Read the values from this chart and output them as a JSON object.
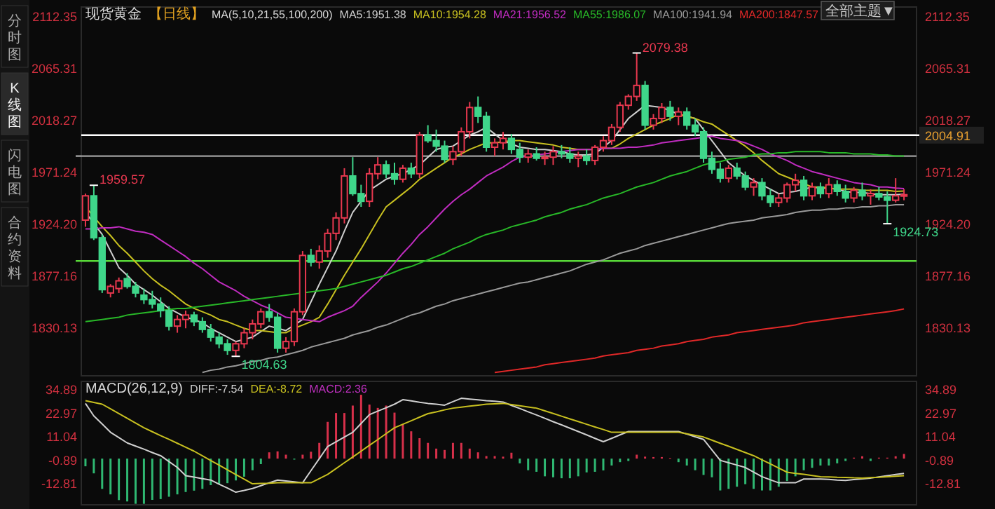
{
  "chart_data": [
    {
      "type": "candlestick",
      "title": "现货黄金",
      "subtitle": "【日线】",
      "legend_title": "MA(5,10,21,55,100,200)",
      "legend": "top",
      "tick_labels": "y",
      "categories": [
        null,
        null,
        null,
        null,
        null,
        null,
        null,
        null,
        null,
        null,
        null,
        null,
        null,
        null,
        null,
        null,
        null,
        null,
        null,
        null,
        null,
        null,
        null,
        null,
        null,
        null,
        null,
        null,
        null,
        null,
        null,
        null,
        null,
        null,
        null,
        null,
        null,
        null,
        null,
        null,
        null,
        null,
        null,
        null,
        null,
        null,
        null,
        null,
        null,
        null,
        null,
        null,
        null,
        null,
        null,
        null,
        null,
        null,
        null,
        null,
        null,
        null,
        null,
        null,
        null,
        null,
        null,
        null,
        null,
        null,
        null,
        null,
        null,
        null,
        null,
        null,
        null,
        null,
        null,
        null,
        null,
        null,
        null,
        null,
        null,
        null,
        null,
        null,
        null,
        null,
        null,
        null,
        null,
        null,
        null,
        null,
        null,
        null,
        null
      ],
      "ohlc": [
        [
          1928,
          1952,
          1922,
          1950
        ],
        [
          1950,
          1959.57,
          1910,
          1912
        ],
        [
          1912,
          1915,
          1862,
          1865
        ],
        [
          1862,
          1870,
          1858,
          1868
        ],
        [
          1866,
          1876,
          1862,
          1873
        ],
        [
          1875,
          1880,
          1866,
          1868
        ],
        [
          1868,
          1872,
          1858,
          1862
        ],
        [
          1860,
          1866,
          1852,
          1856
        ],
        [
          1856,
          1864,
          1848,
          1852
        ],
        [
          1852,
          1858,
          1840,
          1846
        ],
        [
          1846,
          1850,
          1828,
          1832
        ],
        [
          1832,
          1842,
          1826,
          1838
        ],
        [
          1838,
          1846,
          1830,
          1842
        ],
        [
          1842,
          1845,
          1832,
          1836
        ],
        [
          1836,
          1840,
          1826,
          1829
        ],
        [
          1829,
          1834,
          1818,
          1822
        ],
        [
          1822,
          1826,
          1812,
          1816
        ],
        [
          1816,
          1820,
          1806,
          1810
        ],
        [
          1810,
          1818,
          1804.63,
          1816
        ],
        [
          1816,
          1830,
          1812,
          1826
        ],
        [
          1826,
          1838,
          1820,
          1834
        ],
        [
          1834,
          1848,
          1830,
          1845
        ],
        [
          1845,
          1852,
          1836,
          1840
        ],
        [
          1840,
          1844,
          1808,
          1812
        ],
        [
          1812,
          1822,
          1808,
          1818
        ],
        [
          1818,
          1848,
          1814,
          1845
        ],
        [
          1845,
          1900,
          1842,
          1896
        ],
        [
          1896,
          1902,
          1886,
          1890
        ],
        [
          1890,
          1905,
          1884,
          1900
        ],
        [
          1900,
          1920,
          1894,
          1916
        ],
        [
          1916,
          1935,
          1910,
          1930
        ],
        [
          1930,
          1975,
          1925,
          1968
        ],
        [
          1968,
          1985,
          1950,
          1952
        ],
        [
          1952,
          1960,
          1940,
          1945
        ],
        [
          1945,
          1975,
          1940,
          1970
        ],
        [
          1970,
          1985,
          1965,
          1978
        ],
        [
          1978,
          1982,
          1966,
          1970
        ],
        [
          1970,
          1980,
          1960,
          1965
        ],
        [
          1965,
          1978,
          1962,
          1975
        ],
        [
          1975,
          1980,
          1966,
          1970
        ],
        [
          1970,
          2008,
          1966,
          2005
        ],
        [
          2005,
          2014,
          1998,
          2000
        ],
        [
          2000,
          2010,
          1990,
          1995
        ],
        [
          1995,
          2000,
          1980,
          1983
        ],
        [
          1983,
          1995,
          1978,
          1990
        ],
        [
          1990,
          2012,
          1986,
          2008
        ],
        [
          2008,
          2035,
          2002,
          2030
        ],
        [
          2030,
          2040,
          2016,
          2022
        ],
        [
          2022,
          2026,
          1990,
          1994
        ],
        [
          1994,
          2002,
          1986,
          1998
        ],
        [
          1998,
          2008,
          1992,
          2002
        ],
        [
          2002,
          2006,
          1988,
          1992
        ],
        [
          1992,
          1998,
          1980,
          1985
        ],
        [
          1985,
          1992,
          1980,
          1988
        ],
        [
          1988,
          1994,
          1982,
          1984
        ],
        [
          1984,
          1990,
          1978,
          1985
        ],
        [
          1985,
          1995,
          1978,
          1990
        ],
        [
          1990,
          1996,
          1984,
          1988
        ],
        [
          1988,
          1994,
          1980,
          1984
        ],
        [
          1984,
          1990,
          1976,
          1986
        ],
        [
          1986,
          1992,
          1978,
          1982
        ],
        [
          1982,
          1996,
          1978,
          1994
        ],
        [
          1994,
          2004,
          1990,
          2000
        ],
        [
          2000,
          2015,
          1996,
          2012
        ],
        [
          2012,
          2035,
          2008,
          2032
        ],
        [
          2032,
          2042,
          2028,
          2040
        ],
        [
          2040,
          2079.38,
          2036,
          2050
        ],
        [
          2050,
          2054,
          2010,
          2014
        ],
        [
          2014,
          2024,
          2010,
          2020
        ],
        [
          2020,
          2034,
          2016,
          2030
        ],
        [
          2030,
          2036,
          2018,
          2022
        ],
        [
          2022,
          2030,
          2014,
          2026
        ],
        [
          2026,
          2030,
          2010,
          2014
        ],
        [
          2014,
          2020,
          2004,
          2008
        ],
        [
          2008,
          2012,
          1980,
          1984
        ],
        [
          1984,
          1990,
          1970,
          1974
        ],
        [
          1974,
          1980,
          1962,
          1966
        ],
        [
          1966,
          1978,
          1962,
          1975
        ],
        [
          1975,
          1980,
          1965,
          1968
        ],
        [
          1968,
          1972,
          1955,
          1958
        ],
        [
          1958,
          1966,
          1950,
          1962
        ],
        [
          1962,
          1966,
          1946,
          1950
        ],
        [
          1950,
          1956,
          1940,
          1944
        ],
        [
          1944,
          1952,
          1940,
          1948
        ],
        [
          1948,
          1962,
          1944,
          1960
        ],
        [
          1960,
          1970,
          1954,
          1964
        ],
        [
          1964,
          1968,
          1946,
          1950
        ],
        [
          1950,
          1962,
          1946,
          1958
        ],
        [
          1958,
          1962,
          1948,
          1952
        ],
        [
          1952,
          1966,
          1948,
          1960
        ],
        [
          1960,
          1964,
          1950,
          1954
        ],
        [
          1954,
          1960,
          1944,
          1948
        ],
        [
          1948,
          1958,
          1944,
          1955
        ],
        [
          1955,
          1962,
          1946,
          1950
        ],
        [
          1950,
          1956,
          1942,
          1952
        ],
        [
          1952,
          1958,
          1946,
          1949
        ],
        [
          1949,
          1954,
          1924.73,
          1946
        ],
        [
          1946,
          1966,
          1944,
          1950
        ],
        [
          1950,
          1956,
          1946,
          1951
        ]
      ],
      "ylim": [
        1787,
        2121
      ],
      "yticks": [
        1830.13,
        1877.16,
        {
          "value": 1924.2,
          "label": "1924.20"
        },
        1971.24,
        2018.27,
        2065.31,
        2112.35
      ],
      "y2lim": [
        1787,
        2121
      ],
      "y2ticks": [
        1830.13,
        1877.16,
        {
          "value": 1924.2,
          "label": "1924.20"
        },
        1971.24,
        2018.27,
        2065.31,
        2112.35
      ],
      "series": [
        {
          "type": "line",
          "name": "MA5:1951.38",
          "color": "#cfcfcf",
          "values": [
            1935,
            1925,
            1915,
            1900,
            1885,
            1878,
            1870,
            1865,
            1860,
            1854,
            1848,
            1844,
            1840,
            1838,
            1835,
            1830,
            1826,
            1822,
            1818,
            1820,
            1822,
            1827,
            1832,
            1830,
            1828,
            1833,
            1838,
            1854,
            1870,
            1885,
            1900,
            1918,
            1935,
            1945,
            1955,
            1960,
            1965,
            1968,
            1970,
            1974,
            1978,
            1985,
            1992,
            1994,
            1995,
            2000,
            2005,
            2008,
            2012,
            2006,
            2000,
            1997,
            1994,
            1993,
            1992,
            1992,
            1991,
            1990,
            1988,
            1987,
            1987,
            1988,
            1994,
            2000,
            2010,
            2020,
            2026,
            2032,
            2031,
            2030,
            2027,
            2024,
            2022,
            2020,
            2010,
            2000,
            1990,
            1980,
            1974,
            1968,
            1964,
            1960,
            1956,
            1952,
            1953,
            1954,
            1956,
            1958,
            1957,
            1957,
            1956,
            1954,
            1953,
            1953,
            1952,
            1951,
            1951,
            1951,
            1951.38
          ]
        },
        {
          "type": "line",
          "name": "MA10:1954.28",
          "color": "#c8c020",
          "values": [
            1940,
            1931,
            1922,
            1914,
            1905,
            1898,
            1890,
            1882,
            1875,
            1869,
            1864,
            1858,
            1852,
            1848,
            1845,
            1842,
            1838,
            1836,
            1833,
            1830,
            1828,
            1828,
            1827,
            1826,
            1826,
            1830,
            1833,
            1836,
            1840,
            1852,
            1865,
            1878,
            1890,
            1902,
            1915,
            1928,
            1940,
            1946,
            1952,
            1958,
            1965,
            1970,
            1975,
            1980,
            1985,
            1988,
            1992,
            1995,
            1998,
            1998,
            1999,
            2000,
            2000,
            1999,
            1998,
            1997,
            1996,
            1994,
            1993,
            1992,
            1992,
            1992,
            1993,
            1993,
            1997,
            2002,
            2006,
            2010,
            2014,
            2017,
            2020,
            2024,
            2022,
            2020,
            2017,
            2015,
            2010,
            2005,
            2000,
            1995,
            1989,
            1982,
            1976,
            1970,
            1967,
            1964,
            1961,
            1958,
            1958,
            1957,
            1956,
            1956,
            1956,
            1955,
            1955,
            1955,
            1955,
            1954,
            1954.28
          ]
        },
        {
          "type": "line",
          "name": "MA21:1956.52",
          "color": "#c02cc0",
          "values": [
            1920,
            1920,
            1921,
            1921,
            1922,
            1920,
            1918,
            1917,
            1915,
            1910,
            1905,
            1900,
            1895,
            1889,
            1884,
            1878,
            1872,
            1868,
            1864,
            1859,
            1855,
            1851,
            1848,
            1844,
            1840,
            1839,
            1838,
            1837,
            1836,
            1840,
            1843,
            1846,
            1850,
            1858,
            1865,
            1872,
            1880,
            1889,
            1898,
            1906,
            1915,
            1922,
            1930,
            1938,
            1945,
            1951,
            1956,
            1962,
            1968,
            1972,
            1976,
            1981,
            1985,
            1986,
            1987,
            1988,
            1989,
            1990,
            1991,
            1992,
            1992,
            1992,
            1993,
            1993,
            1993,
            1994,
            1994,
            1995,
            1996,
            1998,
            1999,
            2000,
            2001,
            2002,
            2003,
            2004,
            2002,
            2001,
            2000,
            1998,
            1995,
            1992,
            1988,
            1985,
            1982,
            1978,
            1975,
            1972,
            1970,
            1968,
            1966,
            1964,
            1962,
            1961,
            1960,
            1958,
            1958,
            1957,
            1956.52
          ]
        },
        {
          "type": "line",
          "name": "MA55:1986.07",
          "color": "#28b828",
          "values": [
            1836,
            1837,
            1838,
            1839,
            1840,
            1842,
            1843,
            1844,
            1845,
            1846,
            1847,
            1848,
            1848,
            1849,
            1850,
            1851,
            1852,
            1853,
            1854,
            1855,
            1856,
            1857,
            1858,
            1859,
            1860,
            1861,
            1862,
            1863,
            1864,
            1865,
            1866,
            1868,
            1870,
            1872,
            1874,
            1876,
            1878,
            1881,
            1884,
            1886,
            1889,
            1892,
            1895,
            1898,
            1902,
            1905,
            1908,
            1912,
            1915,
            1917,
            1919,
            1922,
            1924,
            1926,
            1928,
            1931,
            1933,
            1935,
            1938,
            1940,
            1942,
            1945,
            1948,
            1950,
            1952,
            1955,
            1958,
            1960,
            1962,
            1965,
            1968,
            1970,
            1972,
            1975,
            1978,
            1980,
            1981,
            1983,
            1984,
            1985,
            1987,
            1988,
            1988,
            1989,
            1989,
            1990,
            1990,
            1990,
            1990,
            1989,
            1989,
            1989,
            1988,
            1988,
            1988,
            1987,
            1987,
            1986,
            1986.07
          ]
        },
        {
          "type": "line",
          "name": "MA100:1941.94",
          "color": "#9a9a9a",
          "values": [
            null,
            null,
            null,
            null,
            null,
            null,
            null,
            null,
            null,
            null,
            null,
            null,
            null,
            null,
            1790,
            1792,
            1793,
            1795,
            1796,
            1798,
            1800,
            1801,
            1803,
            1804,
            1806,
            1808,
            1810,
            1813,
            1815,
            1817,
            1819,
            1821,
            1824,
            1826,
            1828,
            1831,
            1833,
            1836,
            1839,
            1842,
            1844,
            1847,
            1850,
            1852,
            1855,
            1857,
            1859,
            1861,
            1863,
            1865,
            1867,
            1869,
            1871,
            1872,
            1874,
            1876,
            1878,
            1880,
            1882,
            1885,
            1888,
            1890,
            1892,
            1895,
            1898,
            1900,
            1902,
            1905,
            1907,
            1909,
            1911,
            1913,
            1915,
            1917,
            1919,
            1921,
            1923,
            1925,
            1926,
            1927,
            1928,
            1930,
            1931,
            1932,
            1933,
            1935,
            1936,
            1937,
            1937,
            1938,
            1938,
            1939,
            1939,
            1940,
            1940,
            1941,
            1941,
            1942,
            1941.94
          ]
        },
        {
          "type": "line",
          "name": "MA200:1847.57",
          "color": "#e02828",
          "values": [
            null,
            null,
            null,
            null,
            null,
            null,
            null,
            null,
            null,
            null,
            null,
            null,
            null,
            null,
            null,
            null,
            null,
            null,
            null,
            null,
            null,
            null,
            null,
            null,
            null,
            null,
            null,
            null,
            null,
            null,
            null,
            null,
            null,
            null,
            null,
            null,
            null,
            null,
            null,
            null,
            null,
            null,
            null,
            null,
            null,
            null,
            null,
            null,
            null,
            1790,
            1791,
            1792,
            1793,
            1794,
            1795,
            1797,
            1798,
            1799,
            1800,
            1801,
            1802,
            1803,
            1805,
            1806,
            1807,
            1808,
            1810,
            1811,
            1812,
            1814,
            1815,
            1816,
            1818,
            1819,
            1820,
            1822,
            1823,
            1824,
            1826,
            1827,
            1828,
            1829,
            1830,
            1831,
            1832,
            1833,
            1835,
            1836,
            1837,
            1838,
            1839,
            1840,
            1841,
            1842,
            1843,
            1844,
            1845,
            1846,
            1847.57
          ]
        }
      ],
      "ref_lines": [
        {
          "axis": "y2",
          "value": 2004.91,
          "label": "2004.91",
          "color": "#ffffff"
        },
        {
          "axis": "y",
          "value": 1891,
          "color": "#58d838"
        },
        {
          "axis": "y",
          "value": 1986,
          "color": "#a0a0a0"
        }
      ],
      "annotations": [
        "分时图",
        "K线图",
        "闪电图",
        "合约资料",
        "全部主题▼",
        "1959.57",
        "1804.63",
        "2079.38",
        "1924.73"
      ]
    },
    {
      "type": "bar",
      "title": "MACD(26,12,9)",
      "legend": "top",
      "tick_labels": "y",
      "categories": [
        null,
        null,
        null,
        null,
        null,
        null,
        null,
        null,
        null,
        null,
        null,
        null,
        null,
        null,
        null,
        null,
        null,
        null,
        null,
        null,
        null,
        null,
        null,
        null,
        null,
        null,
        null,
        null,
        null,
        null,
        null,
        null,
        null,
        null,
        null,
        null,
        null,
        null,
        null,
        null,
        null,
        null,
        null,
        null,
        null,
        null,
        null,
        null,
        null,
        null,
        null,
        null,
        null,
        null,
        null,
        null,
        null,
        null,
        null,
        null,
        null,
        null,
        null,
        null,
        null,
        null,
        null,
        null,
        null,
        null,
        null,
        null,
        null,
        null,
        null,
        null,
        null,
        null,
        null,
        null,
        null,
        null,
        null,
        null,
        null,
        null,
        null,
        null,
        null,
        null,
        null,
        null,
        null,
        null,
        null,
        null,
        null,
        null,
        null
      ],
      "ylim": [
        -23.5,
        39.3
      ],
      "yticks": [
        -12.81,
        -0.89,
        11.04,
        22.97,
        34.89
      ],
      "y2lim": [
        -23.5,
        39.3
      ],
      "y2ticks": [
        -12.81,
        -0.89,
        11.04,
        22.97,
        34.89
      ],
      "series": [
        {
          "type": "line",
          "name": "DIFF:-7.54",
          "color": "#d0d0d0",
          "values": [
            28.1,
            21.7,
            17.6,
            13.4,
            10.7,
            8,
            6.4,
            4.8,
            3.1,
            1.5,
            -1.5,
            -4.5,
            -8.7,
            -9.4,
            -10.2,
            -10.9,
            -13,
            -15,
            -17.1,
            -16.2,
            -15.2,
            -13.8,
            -12.3,
            -10.9,
            -11.4,
            -11.8,
            -12.3,
            -6.1,
            0,
            6.2,
            8.6,
            11,
            13.4,
            17.9,
            22.4,
            24.2,
            25.9,
            27.7,
            30,
            29.4,
            28.7,
            28.1,
            27.7,
            27.2,
            29,
            30.7,
            30.3,
            29.9,
            29.5,
            29.2,
            28.8,
            27.1,
            25.5,
            23.8,
            22.2,
            20.5,
            18.8,
            17.2,
            15.5,
            13.8,
            12.1,
            10.3,
            8.6,
            10.3,
            12.1,
            13.8,
            13.8,
            13.8,
            13.8,
            13.8,
            13.8,
            13.8,
            12.5,
            11.1,
            9.8,
            4.5,
            -0.9,
            -2.1,
            -3.3,
            -4.5,
            -6.9,
            -9.2,
            -10.8,
            -12.3,
            -12.3,
            -12.3,
            -10.4,
            -10.4,
            -10.4,
            -10.6,
            -10.9,
            -11.1,
            -10.7,
            -10.3,
            -9.9,
            -9.3,
            -8.7,
            -8.1,
            -7.54
          ]
        },
        {
          "type": "line",
          "name": "DEA:-8.72",
          "color": "#c8c020",
          "values": [
            29.5,
            28.6,
            27.7,
            25.3,
            22.9,
            20.5,
            18.1,
            15.7,
            13.7,
            11.7,
            9.8,
            7.8,
            5.8,
            3.8,
            1.4,
            -1,
            -3.3,
            -5.7,
            -8.1,
            -10.4,
            -12.8,
            -12.6,
            -12.5,
            -12.3,
            -12.3,
            -12.3,
            -12.3,
            -12.3,
            -10.2,
            -8,
            -5.1,
            -2.1,
            0.8,
            3.8,
            6.8,
            9.7,
            12.7,
            15.7,
            17.5,
            19.3,
            21.1,
            22.9,
            23.8,
            24.8,
            25.7,
            26.2,
            26.7,
            27.2,
            27.7,
            27.9,
            28.1,
            27.5,
            26.9,
            26.3,
            25.7,
            24.3,
            23,
            21.6,
            20.2,
            18.9,
            17.5,
            16.1,
            14.8,
            13.4,
            13.4,
            13.4,
            13.4,
            13.4,
            13.4,
            13.4,
            13.4,
            13.4,
            12.6,
            11.8,
            11,
            9.4,
            7.8,
            6.3,
            4.7,
            3.1,
            1.5,
            -0.6,
            -2.7,
            -4.8,
            -6.9,
            -7.5,
            -8,
            -8.6,
            -9.2,
            -9.3,
            -9.5,
            -9.6,
            -9.8,
            -9.9,
            -9.7,
            -9.5,
            -9.2,
            -9,
            -8.72
          ]
        },
        {
          "type": "bar",
          "name": "MACD:2.36",
          "color": "#c030c0",
          "values": [
            -3.9,
            -7.5,
            -15.4,
            -18.2,
            -21.1,
            -21.8,
            -23,
            -23,
            -21,
            -20.6,
            -19.4,
            -18.2,
            -17,
            -16.3,
            -15.4,
            -13.5,
            -13,
            -12.5,
            -11.1,
            -9.2,
            -5.9,
            -2.8,
            3.2,
            3.7,
            2,
            -0.5,
            2,
            3.5,
            8,
            18.7,
            23.2,
            23.2,
            27,
            32.5,
            27.5,
            25.8,
            27,
            23.4,
            17.5,
            13.9,
            10.4,
            8,
            5.1,
            4.4,
            8,
            8,
            5.1,
            3.2,
            1.3,
            1.3,
            1,
            3,
            -2.4,
            -5.9,
            -6.7,
            -9,
            -9.5,
            -10,
            -10,
            -9,
            -7,
            -6.7,
            -6,
            -3.5,
            -1.8,
            -1.2,
            2,
            1,
            0.8,
            0.8,
            0.3,
            -1.8,
            -3.5,
            -5.9,
            -8.3,
            -9.5,
            -16.2,
            -15.4,
            -14.3,
            -13,
            -15.4,
            -16.2,
            -16.2,
            -14.3,
            -11.4,
            -9,
            -5.9,
            -4.7,
            -3.5,
            -3.5,
            -2.4,
            -1.2,
            0.5,
            1.2,
            -1.2,
            0.5,
            0.5,
            1.2,
            2.36
          ],
          "colors": [
            "#2fb872",
            "#2fb872",
            "#2fb872",
            "#2fb872",
            "#2fb872",
            "#2fb872",
            "#2fb872",
            "#2fb872",
            "#2fb872",
            "#2fb872",
            "#2fb872",
            "#2fb872",
            "#2fb872",
            "#2fb872",
            "#2fb872",
            "#2fb872",
            "#2fb872",
            "#2fb872",
            "#2fb872",
            "#2fb872",
            "#2fb872",
            "#2fb872",
            "#d8304a",
            "#d8304a",
            "#d8304a",
            "#2fb872",
            "#d8304a",
            "#d8304a",
            "#d8304a",
            "#d8304a",
            "#d8304a",
            "#d8304a",
            "#d8304a",
            "#d8304a",
            "#d8304a",
            "#d8304a",
            "#d8304a",
            "#d8304a",
            "#d8304a",
            "#d8304a",
            "#d8304a",
            "#d8304a",
            "#d8304a",
            "#d8304a",
            "#d8304a",
            "#d8304a",
            "#d8304a",
            "#d8304a",
            "#d8304a",
            "#d8304a",
            "#d8304a",
            "#d8304a",
            "#2fb872",
            "#2fb872",
            "#2fb872",
            "#2fb872",
            "#2fb872",
            "#2fb872",
            "#2fb872",
            "#2fb872",
            "#2fb872",
            "#2fb872",
            "#2fb872",
            "#2fb872",
            "#2fb872",
            "#2fb872",
            "#d8304a",
            "#d8304a",
            "#d8304a",
            "#d8304a",
            "#d8304a",
            "#2fb872",
            "#2fb872",
            "#2fb872",
            "#2fb872",
            "#2fb872",
            "#2fb872",
            "#2fb872",
            "#2fb872",
            "#2fb872",
            "#2fb872",
            "#2fb872",
            "#2fb872",
            "#2fb872",
            "#2fb872",
            "#2fb872",
            "#2fb872",
            "#2fb872",
            "#2fb872",
            "#2fb872",
            "#2fb872",
            "#2fb872",
            "#d8304a",
            "#d8304a",
            "#2fb872",
            "#d8304a",
            "#d8304a",
            "#d8304a",
            "#d8304a"
          ]
        }
      ]
    }
  ]
}
